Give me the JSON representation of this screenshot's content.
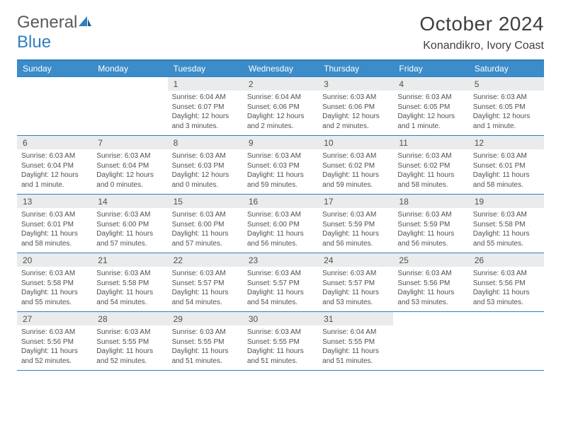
{
  "brand": {
    "word1": "General",
    "word2": "Blue"
  },
  "title": "October 2024",
  "location": "Konandikro, Ivory Coast",
  "colors": {
    "accent": "#2e7fbf",
    "header_bg": "#3b8cc9",
    "daynum_bg": "#e9ebec",
    "text": "#505050"
  },
  "dow": [
    "Sunday",
    "Monday",
    "Tuesday",
    "Wednesday",
    "Thursday",
    "Friday",
    "Saturday"
  ],
  "weeks": [
    [
      {
        "n": "",
        "sr": "",
        "ss": "",
        "d1": "",
        "d2": ""
      },
      {
        "n": "",
        "sr": "",
        "ss": "",
        "d1": "",
        "d2": ""
      },
      {
        "n": "1",
        "sr": "Sunrise: 6:04 AM",
        "ss": "Sunset: 6:07 PM",
        "d1": "Daylight: 12 hours",
        "d2": "and 3 minutes."
      },
      {
        "n": "2",
        "sr": "Sunrise: 6:04 AM",
        "ss": "Sunset: 6:06 PM",
        "d1": "Daylight: 12 hours",
        "d2": "and 2 minutes."
      },
      {
        "n": "3",
        "sr": "Sunrise: 6:03 AM",
        "ss": "Sunset: 6:06 PM",
        "d1": "Daylight: 12 hours",
        "d2": "and 2 minutes."
      },
      {
        "n": "4",
        "sr": "Sunrise: 6:03 AM",
        "ss": "Sunset: 6:05 PM",
        "d1": "Daylight: 12 hours",
        "d2": "and 1 minute."
      },
      {
        "n": "5",
        "sr": "Sunrise: 6:03 AM",
        "ss": "Sunset: 6:05 PM",
        "d1": "Daylight: 12 hours",
        "d2": "and 1 minute."
      }
    ],
    [
      {
        "n": "6",
        "sr": "Sunrise: 6:03 AM",
        "ss": "Sunset: 6:04 PM",
        "d1": "Daylight: 12 hours",
        "d2": "and 1 minute."
      },
      {
        "n": "7",
        "sr": "Sunrise: 6:03 AM",
        "ss": "Sunset: 6:04 PM",
        "d1": "Daylight: 12 hours",
        "d2": "and 0 minutes."
      },
      {
        "n": "8",
        "sr": "Sunrise: 6:03 AM",
        "ss": "Sunset: 6:03 PM",
        "d1": "Daylight: 12 hours",
        "d2": "and 0 minutes."
      },
      {
        "n": "9",
        "sr": "Sunrise: 6:03 AM",
        "ss": "Sunset: 6:03 PM",
        "d1": "Daylight: 11 hours",
        "d2": "and 59 minutes."
      },
      {
        "n": "10",
        "sr": "Sunrise: 6:03 AM",
        "ss": "Sunset: 6:02 PM",
        "d1": "Daylight: 11 hours",
        "d2": "and 59 minutes."
      },
      {
        "n": "11",
        "sr": "Sunrise: 6:03 AM",
        "ss": "Sunset: 6:02 PM",
        "d1": "Daylight: 11 hours",
        "d2": "and 58 minutes."
      },
      {
        "n": "12",
        "sr": "Sunrise: 6:03 AM",
        "ss": "Sunset: 6:01 PM",
        "d1": "Daylight: 11 hours",
        "d2": "and 58 minutes."
      }
    ],
    [
      {
        "n": "13",
        "sr": "Sunrise: 6:03 AM",
        "ss": "Sunset: 6:01 PM",
        "d1": "Daylight: 11 hours",
        "d2": "and 58 minutes."
      },
      {
        "n": "14",
        "sr": "Sunrise: 6:03 AM",
        "ss": "Sunset: 6:00 PM",
        "d1": "Daylight: 11 hours",
        "d2": "and 57 minutes."
      },
      {
        "n": "15",
        "sr": "Sunrise: 6:03 AM",
        "ss": "Sunset: 6:00 PM",
        "d1": "Daylight: 11 hours",
        "d2": "and 57 minutes."
      },
      {
        "n": "16",
        "sr": "Sunrise: 6:03 AM",
        "ss": "Sunset: 6:00 PM",
        "d1": "Daylight: 11 hours",
        "d2": "and 56 minutes."
      },
      {
        "n": "17",
        "sr": "Sunrise: 6:03 AM",
        "ss": "Sunset: 5:59 PM",
        "d1": "Daylight: 11 hours",
        "d2": "and 56 minutes."
      },
      {
        "n": "18",
        "sr": "Sunrise: 6:03 AM",
        "ss": "Sunset: 5:59 PM",
        "d1": "Daylight: 11 hours",
        "d2": "and 56 minutes."
      },
      {
        "n": "19",
        "sr": "Sunrise: 6:03 AM",
        "ss": "Sunset: 5:58 PM",
        "d1": "Daylight: 11 hours",
        "d2": "and 55 minutes."
      }
    ],
    [
      {
        "n": "20",
        "sr": "Sunrise: 6:03 AM",
        "ss": "Sunset: 5:58 PM",
        "d1": "Daylight: 11 hours",
        "d2": "and 55 minutes."
      },
      {
        "n": "21",
        "sr": "Sunrise: 6:03 AM",
        "ss": "Sunset: 5:58 PM",
        "d1": "Daylight: 11 hours",
        "d2": "and 54 minutes."
      },
      {
        "n": "22",
        "sr": "Sunrise: 6:03 AM",
        "ss": "Sunset: 5:57 PM",
        "d1": "Daylight: 11 hours",
        "d2": "and 54 minutes."
      },
      {
        "n": "23",
        "sr": "Sunrise: 6:03 AM",
        "ss": "Sunset: 5:57 PM",
        "d1": "Daylight: 11 hours",
        "d2": "and 54 minutes."
      },
      {
        "n": "24",
        "sr": "Sunrise: 6:03 AM",
        "ss": "Sunset: 5:57 PM",
        "d1": "Daylight: 11 hours",
        "d2": "and 53 minutes."
      },
      {
        "n": "25",
        "sr": "Sunrise: 6:03 AM",
        "ss": "Sunset: 5:56 PM",
        "d1": "Daylight: 11 hours",
        "d2": "and 53 minutes."
      },
      {
        "n": "26",
        "sr": "Sunrise: 6:03 AM",
        "ss": "Sunset: 5:56 PM",
        "d1": "Daylight: 11 hours",
        "d2": "and 53 minutes."
      }
    ],
    [
      {
        "n": "27",
        "sr": "Sunrise: 6:03 AM",
        "ss": "Sunset: 5:56 PM",
        "d1": "Daylight: 11 hours",
        "d2": "and 52 minutes."
      },
      {
        "n": "28",
        "sr": "Sunrise: 6:03 AM",
        "ss": "Sunset: 5:55 PM",
        "d1": "Daylight: 11 hours",
        "d2": "and 52 minutes."
      },
      {
        "n": "29",
        "sr": "Sunrise: 6:03 AM",
        "ss": "Sunset: 5:55 PM",
        "d1": "Daylight: 11 hours",
        "d2": "and 51 minutes."
      },
      {
        "n": "30",
        "sr": "Sunrise: 6:03 AM",
        "ss": "Sunset: 5:55 PM",
        "d1": "Daylight: 11 hours",
        "d2": "and 51 minutes."
      },
      {
        "n": "31",
        "sr": "Sunrise: 6:04 AM",
        "ss": "Sunset: 5:55 PM",
        "d1": "Daylight: 11 hours",
        "d2": "and 51 minutes."
      },
      {
        "n": "",
        "sr": "",
        "ss": "",
        "d1": "",
        "d2": ""
      },
      {
        "n": "",
        "sr": "",
        "ss": "",
        "d1": "",
        "d2": ""
      }
    ]
  ]
}
